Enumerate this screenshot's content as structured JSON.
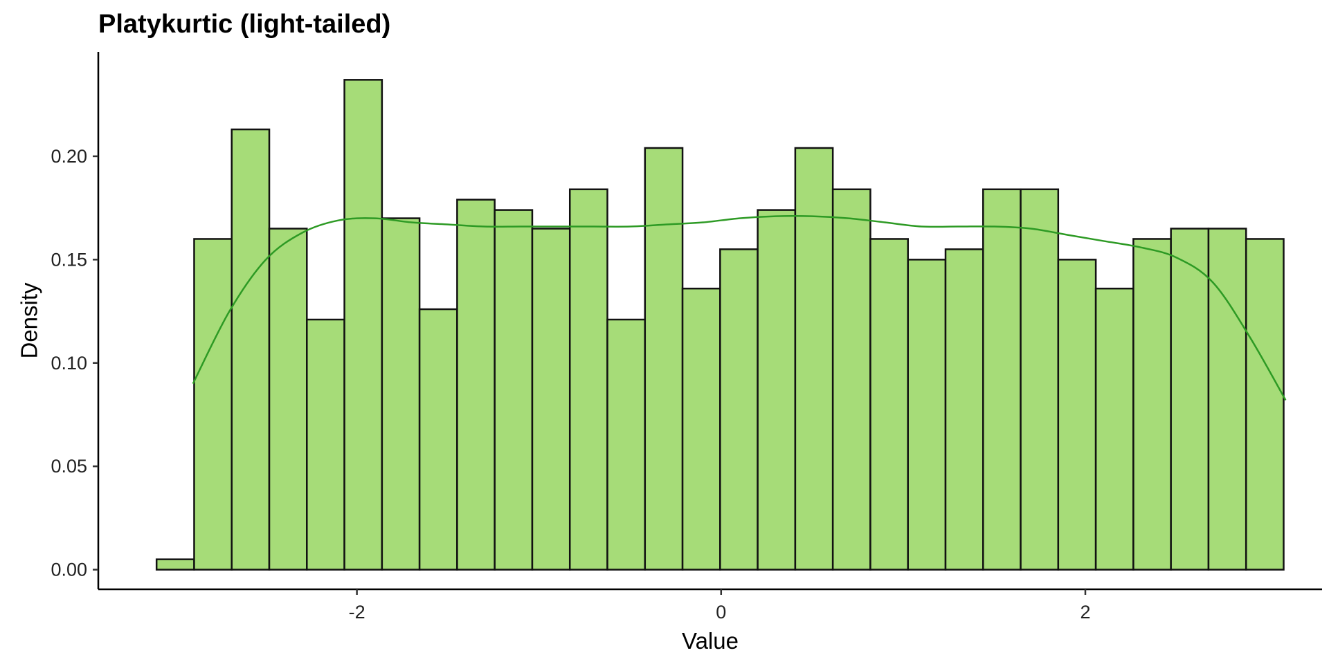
{
  "chart_data": {
    "type": "bar",
    "title": "Platykurtic (light-tailed)",
    "xlabel": "Value",
    "ylabel": "Density",
    "xlim": [
      -3.42,
      3.3
    ],
    "ylim": [
      -0.0095,
      0.2505
    ],
    "x_ticks": [
      {
        "value": -2,
        "label": "-2"
      },
      {
        "value": 0,
        "label": "0"
      },
      {
        "value": 2,
        "label": "2"
      }
    ],
    "y_ticks": [
      {
        "value": 0.0,
        "label": "0.00"
      },
      {
        "value": 0.05,
        "label": "0.05"
      },
      {
        "value": 0.1,
        "label": "0.10"
      },
      {
        "value": 0.15,
        "label": "0.15"
      },
      {
        "value": 0.2,
        "label": "0.20"
      }
    ],
    "grid": false,
    "bins": {
      "start": -3.1,
      "width": 0.2063,
      "values": [
        0.005,
        0.16,
        0.213,
        0.165,
        0.121,
        0.237,
        0.17,
        0.126,
        0.179,
        0.174,
        0.165,
        0.184,
        0.121,
        0.204,
        0.136,
        0.155,
        0.174,
        0.204,
        0.184,
        0.16,
        0.15,
        0.155,
        0.184,
        0.184,
        0.15,
        0.136,
        0.16,
        0.165,
        0.165,
        0.16
      ]
    },
    "density_curve": {
      "x": [
        -2.9,
        -2.7,
        -2.5,
        -2.3,
        -2.1,
        -1.9,
        -1.7,
        -1.5,
        -1.3,
        -1.1,
        -0.9,
        -0.7,
        -0.5,
        -0.3,
        -0.1,
        0.1,
        0.3,
        0.5,
        0.7,
        0.9,
        1.1,
        1.3,
        1.5,
        1.7,
        1.9,
        2.1,
        2.3,
        2.5,
        2.7,
        2.9,
        3.1
      ],
      "y": [
        0.09,
        0.125,
        0.15,
        0.163,
        0.169,
        0.17,
        0.168,
        0.167,
        0.166,
        0.166,
        0.166,
        0.166,
        0.166,
        0.167,
        0.168,
        0.17,
        0.171,
        0.171,
        0.17,
        0.168,
        0.166,
        0.166,
        0.166,
        0.165,
        0.162,
        0.159,
        0.156,
        0.151,
        0.139,
        0.113,
        0.082
      ]
    },
    "colors": {
      "bar_fill": "#a6dc78",
      "bar_edge": "#111111",
      "curve": "#2d9a24"
    }
  }
}
